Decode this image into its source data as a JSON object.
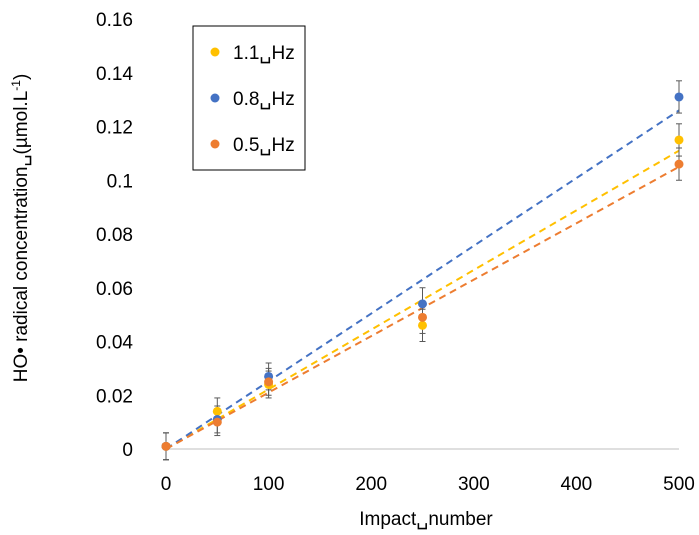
{
  "chart_data": {
    "type": "scatter",
    "xlabel": "Impact␣number",
    "ylabel_main": "HO• radical concentration␣(µmol.L",
    "ylabel_sup": "-1",
    "ylabel_end": ")",
    "xlim": [
      0,
      500
    ],
    "ylim": [
      0,
      0.16
    ],
    "xticks": [
      0,
      100,
      200,
      300,
      400,
      500
    ],
    "yticks": [
      0,
      0.02,
      0.04,
      0.06,
      0.08,
      0.1,
      0.12,
      0.14,
      0.16
    ],
    "xtick_labels": [
      "0",
      "100",
      "200",
      "300",
      "400",
      "500"
    ],
    "ytick_labels": [
      "0",
      "0.02",
      "0.04",
      "0.06",
      "0.08",
      "0.1",
      "0.12",
      "0.14",
      "0.16"
    ],
    "grid": false,
    "legend_position": "top-left",
    "series": [
      {
        "name": "1.1␣Hz",
        "color": "#FFC000",
        "x": [
          0,
          50,
          100,
          250,
          500
        ],
        "y": [
          0.001,
          0.014,
          0.024,
          0.046,
          0.115
        ],
        "err": [
          0.005,
          0.005,
          0.005,
          0.006,
          0.006
        ],
        "trend": [
          [
            0,
            0
          ],
          [
            500,
            0.111
          ]
        ]
      },
      {
        "name": "0.8␣Hz",
        "color": "#4472C4",
        "x": [
          0,
          50,
          100,
          250,
          500
        ],
        "y": [
          0.001,
          0.011,
          0.027,
          0.054,
          0.131
        ],
        "err": [
          0.005,
          0.005,
          0.005,
          0.006,
          0.006
        ],
        "trend": [
          [
            0,
            0
          ],
          [
            500,
            0.126
          ]
        ]
      },
      {
        "name": "0.5␣Hz",
        "color": "#ED7D31",
        "x": [
          0,
          50,
          100,
          250,
          500
        ],
        "y": [
          0.001,
          0.01,
          0.025,
          0.049,
          0.106
        ],
        "err": [
          0.005,
          0.005,
          0.005,
          0.006,
          0.006
        ],
        "trend": [
          [
            0,
            0
          ],
          [
            500,
            0.105
          ]
        ]
      }
    ]
  }
}
